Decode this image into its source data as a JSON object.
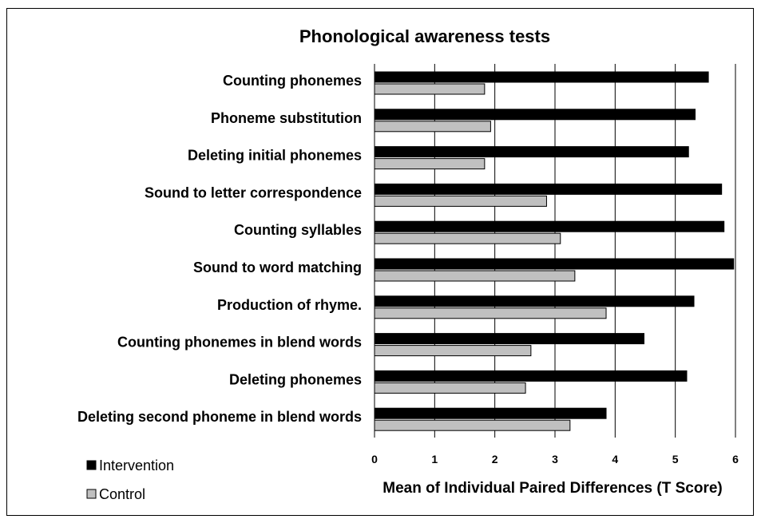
{
  "chart_data": {
    "type": "bar",
    "orientation": "horizontal",
    "title": "Phonological awareness tests",
    "xlabel": "Mean of Individual Paired Differences (T Score)",
    "ylabel": "",
    "xlim": [
      0,
      6
    ],
    "xticks": [
      0,
      1,
      2,
      3,
      4,
      5,
      6
    ],
    "grid": true,
    "legend_position": "bottom-left",
    "categories": [
      "Counting phonemes",
      "Phoneme substitution",
      "Deleting initial phonemes",
      "Sound to letter correspondence",
      "Counting syllables",
      "Sound to word matching",
      "Production of rhyme.",
      "Counting phonemes in blend words",
      "Deleting phonemes",
      "Deleting second phoneme in blend words"
    ],
    "series": [
      {
        "name": "Intervention",
        "color": "#000000",
        "values": [
          5.55,
          5.33,
          5.22,
          5.77,
          5.81,
          5.97,
          5.31,
          4.48,
          5.19,
          3.85
        ]
      },
      {
        "name": "Control",
        "color": "#c0c0c0",
        "values": [
          1.83,
          1.93,
          1.83,
          2.86,
          3.09,
          3.33,
          3.85,
          2.6,
          2.51,
          3.25
        ]
      }
    ]
  }
}
